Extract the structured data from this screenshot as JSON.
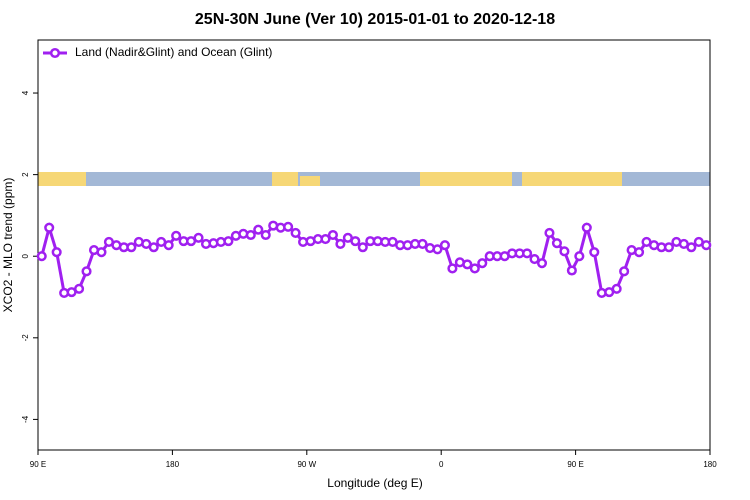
{
  "chart_data": {
    "type": "line",
    "title": "25N-30N June (Ver 10)   2015-01-01 to 2020-12-18",
    "x_label": "Longitude (deg E)",
    "y_label": "XCO2 - MLO trend (ppm)",
    "x": [
      92.5,
      97.5,
      102.5,
      107.5,
      112.5,
      117.5,
      122.5,
      127.5,
      132.5,
      137.5,
      142.5,
      147.5,
      152.5,
      157.5,
      162.5,
      167.5,
      172.5,
      177.5,
      182.5,
      187.5,
      192.5,
      197.5,
      202.5,
      207.5,
      212.5,
      217.5,
      222.5,
      227.5,
      232.5,
      237.5,
      242.5,
      247.5,
      252.5,
      257.5,
      262.5,
      267.5,
      272.5,
      277.5,
      282.5,
      287.5,
      292.5,
      297.5,
      302.5,
      307.5,
      312.5,
      317.5,
      322.5,
      327.5,
      332.5,
      337.5,
      342.5,
      347.5,
      352.5,
      357.5,
      362.5,
      367.5,
      372.5,
      377.5,
      382.5,
      387.5,
      392.5,
      397.5,
      402.5,
      407.5,
      412.5,
      417.5,
      422.5,
      427.5,
      432.5,
      437.5,
      442.5,
      447.5,
      452.5,
      457.5,
      462.5,
      467.5,
      472.5,
      477.5,
      482.5,
      487.5,
      492.5,
      497.5,
      502.5,
      507.5,
      512.5,
      517.5,
      522.5,
      527.5,
      532.5,
      537.5
    ],
    "series": [
      {
        "name": "Land (Nadir&Glint) and Ocean (Glint)",
        "color": "#a020f0",
        "values": [
          0,
          0.7,
          0.1,
          -0.9,
          -0.88,
          -0.8,
          -0.37,
          0.15,
          0.1,
          0.35,
          0.27,
          0.22,
          0.22,
          0.35,
          0.3,
          0.22,
          0.35,
          0.27,
          0.5,
          0.37,
          0.37,
          0.45,
          0.3,
          0.32,
          0.35,
          0.37,
          0.5,
          0.55,
          0.52,
          0.65,
          0.52,
          0.75,
          0.7,
          0.72,
          0.57,
          0.35,
          0.37,
          0.42,
          0.42,
          0.52,
          0.3,
          0.45,
          0.37,
          0.22,
          0.37,
          0.37,
          0.35,
          0.35,
          0.27,
          0.27,
          0.3,
          0.3,
          0.2,
          0.17,
          0.27,
          -0.3,
          -0.15,
          -0.2,
          -0.3,
          -0.17,
          0,
          0,
          0,
          0.07,
          0.07,
          0.07,
          -0.07,
          -0.17,
          0.57,
          0.32,
          0.12,
          -0.35,
          0,
          0.7,
          0.1,
          -0.9,
          -0.88,
          -0.8,
          -0.37,
          0.15,
          0.1,
          0.35,
          0.27,
          0.22,
          0.22,
          0.35,
          0.3,
          0.22,
          0.35,
          0.27
        ]
      }
    ],
    "xlim": [
      90,
      540
    ],
    "xticks": [
      {
        "value": 90,
        "label": "90 E"
      },
      180,
      {
        "value": 270,
        "label": "90 W"
      },
      {
        "value": 360,
        "label": "0"
      },
      {
        "value": 450,
        "label": "90 E"
      },
      {
        "value": 540,
        "label": "180"
      }
    ],
    "ylim": [
      -4.75,
      5.3
    ],
    "yticks": [
      -4,
      -2,
      0,
      2,
      4
    ],
    "legend": "topleft",
    "grid": false
  }
}
